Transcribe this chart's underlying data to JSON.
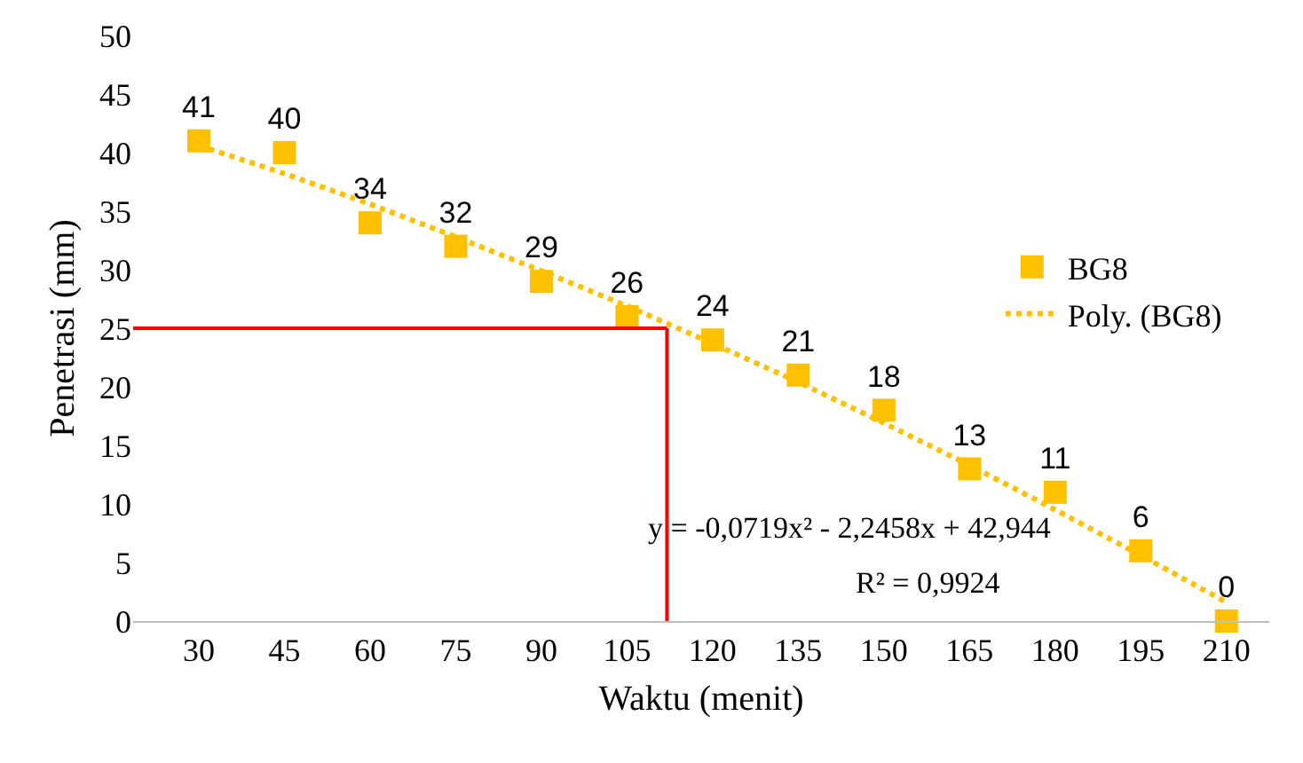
{
  "chart_data": {
    "type": "scatter",
    "xlabel": "Waktu (menit)",
    "ylabel": "Penetrasi (mm)",
    "x": [
      30,
      45,
      60,
      75,
      90,
      105,
      120,
      135,
      150,
      165,
      180,
      195,
      210
    ],
    "xlim": [
      18.5,
      217.5
    ],
    "xticks": [
      30,
      45,
      60,
      75,
      90,
      105,
      120,
      135,
      150,
      165,
      180,
      195,
      210
    ],
    "ylim": [
      0,
      50
    ],
    "yticks": [
      0,
      5,
      10,
      15,
      20,
      25,
      30,
      35,
      40,
      45,
      50
    ],
    "series": [
      {
        "name": "BG8",
        "color": "#ffc000",
        "marker": "square",
        "values": [
          41,
          40,
          34,
          32,
          29,
          26,
          24,
          21,
          18,
          13,
          11,
          6,
          0
        ],
        "data_labels": true
      },
      {
        "name": "Poly. (BG8)",
        "type": "line",
        "color": "#ffc000",
        "line_style": "dotted",
        "marker": "none",
        "values": [
          40.6,
          38.2,
          35.6,
          32.8,
          29.9,
          26.9,
          23.7,
          20.4,
          16.9,
          13.3,
          9.5,
          5.6,
          1.6
        ]
      }
    ],
    "ref_lines": [
      {
        "axis": "y",
        "value": 25,
        "color": "#ff0000"
      },
      {
        "axis": "x",
        "value": 112,
        "color": "#ff0000"
      }
    ],
    "annotations": [
      "y = -0,0719x² - 2,2458x + 42,944",
      "R² = 0,9924"
    ],
    "grid": false,
    "legend": "right"
  }
}
